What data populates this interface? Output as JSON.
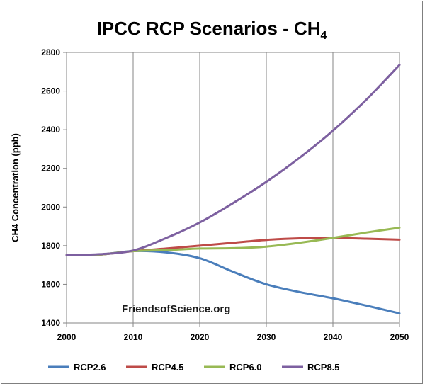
{
  "chart_data": {
    "type": "line",
    "title": "IPCC RCP Scenarios - CH",
    "title_subscript": "4",
    "ylabel": "CH4 Concentration (ppb)",
    "xlabel": "",
    "xlim": [
      2000,
      2050
    ],
    "ylim": [
      1400,
      2800
    ],
    "x_ticks": [
      2000,
      2010,
      2020,
      2030,
      2040,
      2050
    ],
    "y_ticks": [
      1400,
      1600,
      1800,
      2000,
      2200,
      2400,
      2600,
      2800
    ],
    "grid": {
      "vertical": true,
      "horizontal": false
    },
    "legend_position": "bottom",
    "watermark": "FriendsofScience.org",
    "x": [
      2000,
      2005,
      2010,
      2015,
      2020,
      2025,
      2030,
      2035,
      2040,
      2045,
      2050
    ],
    "series": [
      {
        "name": "RCP2.6",
        "color": "#4a7ebb",
        "values": [
          1751,
          1754,
          1772,
          1765,
          1735,
          1665,
          1600,
          1560,
          1528,
          1490,
          1450
        ]
      },
      {
        "name": "RCP4.5",
        "color": "#be4b48",
        "values": [
          1751,
          1754,
          1772,
          1785,
          1800,
          1815,
          1830,
          1838,
          1840,
          1836,
          1831
        ]
      },
      {
        "name": "RCP6.0",
        "color": "#98b954",
        "values": [
          1751,
          1754,
          1772,
          1777,
          1785,
          1787,
          1795,
          1815,
          1840,
          1868,
          1893
        ]
      },
      {
        "name": "RCP8.5",
        "color": "#7d60a0",
        "values": [
          1751,
          1756,
          1775,
          1840,
          1920,
          2020,
          2130,
          2255,
          2395,
          2555,
          2735
        ]
      }
    ]
  }
}
